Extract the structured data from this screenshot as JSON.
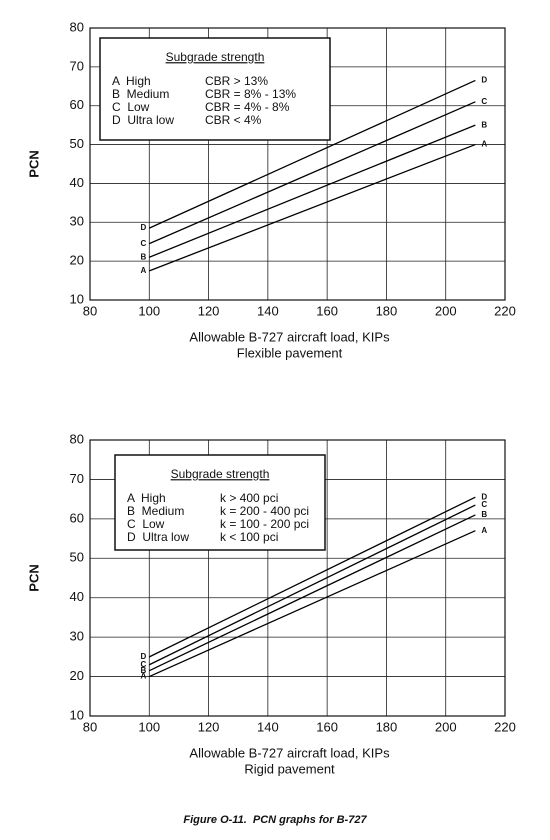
{
  "chart_data": [
    {
      "type": "line",
      "x_label": "Allowable B-727 aircraft load, KIPs",
      "subtitle": "Flexible pavement",
      "y_label": "PCN",
      "x": [
        100,
        210
      ],
      "series": [
        {
          "name": "A",
          "color": "#000000",
          "values": [
            17.5,
            50
          ]
        },
        {
          "name": "B",
          "color": "#000000",
          "values": [
            21,
            55
          ]
        },
        {
          "name": "C",
          "color": "#000000",
          "values": [
            24.5,
            61
          ]
        },
        {
          "name": "D",
          "color": "#000000",
          "values": [
            28.5,
            66.5
          ]
        }
      ],
      "xlim": [
        80,
        220
      ],
      "xticks": [
        80,
        100,
        120,
        140,
        160,
        180,
        200,
        220
      ],
      "ylim": [
        10,
        80
      ],
      "yticks": [
        10,
        20,
        30,
        40,
        50,
        60,
        70,
        80
      ],
      "grid": true,
      "legend": {
        "title": "Subgrade strength",
        "entries": [
          {
            "label": "A  High",
            "criterion": "CBR > 13%"
          },
          {
            "label": "B  Medium",
            "criterion": "CBR = 8% - 13%"
          },
          {
            "label": "C  Low",
            "criterion": "CBR = 4% - 8%"
          },
          {
            "label": "D  Ultra low",
            "criterion": "CBR < 4%"
          }
        ]
      }
    },
    {
      "type": "line",
      "x_label": "Allowable B-727 aircraft load, KIPs",
      "subtitle": "Rigid pavement",
      "y_label": "PCN",
      "x": [
        100,
        210
      ],
      "series": [
        {
          "name": "A",
          "color": "#000000",
          "values": [
            20,
            57
          ]
        },
        {
          "name": "B",
          "color": "#000000",
          "values": [
            21.5,
            61
          ]
        },
        {
          "name": "C",
          "color": "#000000",
          "values": [
            23,
            63.5
          ]
        },
        {
          "name": "D",
          "color": "#000000",
          "values": [
            25,
            65.5
          ]
        }
      ],
      "xlim": [
        80,
        220
      ],
      "xticks": [
        80,
        100,
        120,
        140,
        160,
        180,
        200,
        220
      ],
      "ylim": [
        10,
        80
      ],
      "yticks": [
        10,
        20,
        30,
        40,
        50,
        60,
        70,
        80
      ],
      "grid": true,
      "legend": {
        "title": "Subgrade strength",
        "entries": [
          {
            "label": "A  High",
            "criterion": "k > 400 pci"
          },
          {
            "label": "B  Medium",
            "criterion": "k = 200 - 400 pci"
          },
          {
            "label": "C  Low",
            "criterion": "k = 100 - 200 pci"
          },
          {
            "label": "D  Ultra low",
            "criterion": "k < 100 pci"
          }
        ]
      }
    }
  ],
  "caption": "Figure O-11.  PCN graphs for B-727"
}
